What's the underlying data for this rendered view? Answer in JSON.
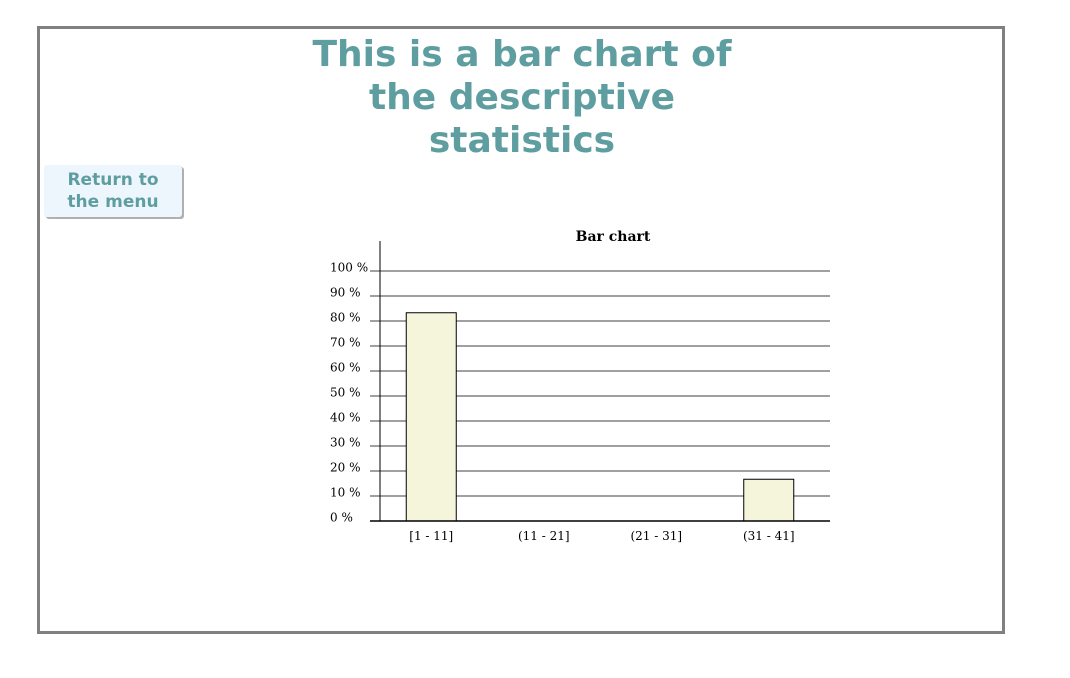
{
  "page": {
    "title": "This is a bar chart of the descriptive statistics",
    "menu_button_label": "Return to the menu"
  },
  "colors": {
    "title": "#5f9ea0",
    "bar_fill": "#f5f5dc",
    "grid": "#808080",
    "frame": "#808080"
  },
  "chart_data": {
    "type": "bar",
    "title": "Bar chart",
    "categories": [
      "[1 - 11]",
      "(11 - 21]",
      "(21 - 31]",
      "(31 - 41]"
    ],
    "values": [
      83.3,
      0,
      0,
      16.7
    ],
    "ylim": [
      0,
      100
    ],
    "yticks": [
      0,
      10,
      20,
      30,
      40,
      50,
      60,
      70,
      80,
      90,
      100
    ],
    "ytick_labels": [
      "0 %",
      "10 %",
      "20 %",
      "30 %",
      "40 %",
      "50 %",
      "60 %",
      "70 %",
      "80 %",
      "90 %",
      "100 %"
    ],
    "grid": true,
    "legend": false
  }
}
